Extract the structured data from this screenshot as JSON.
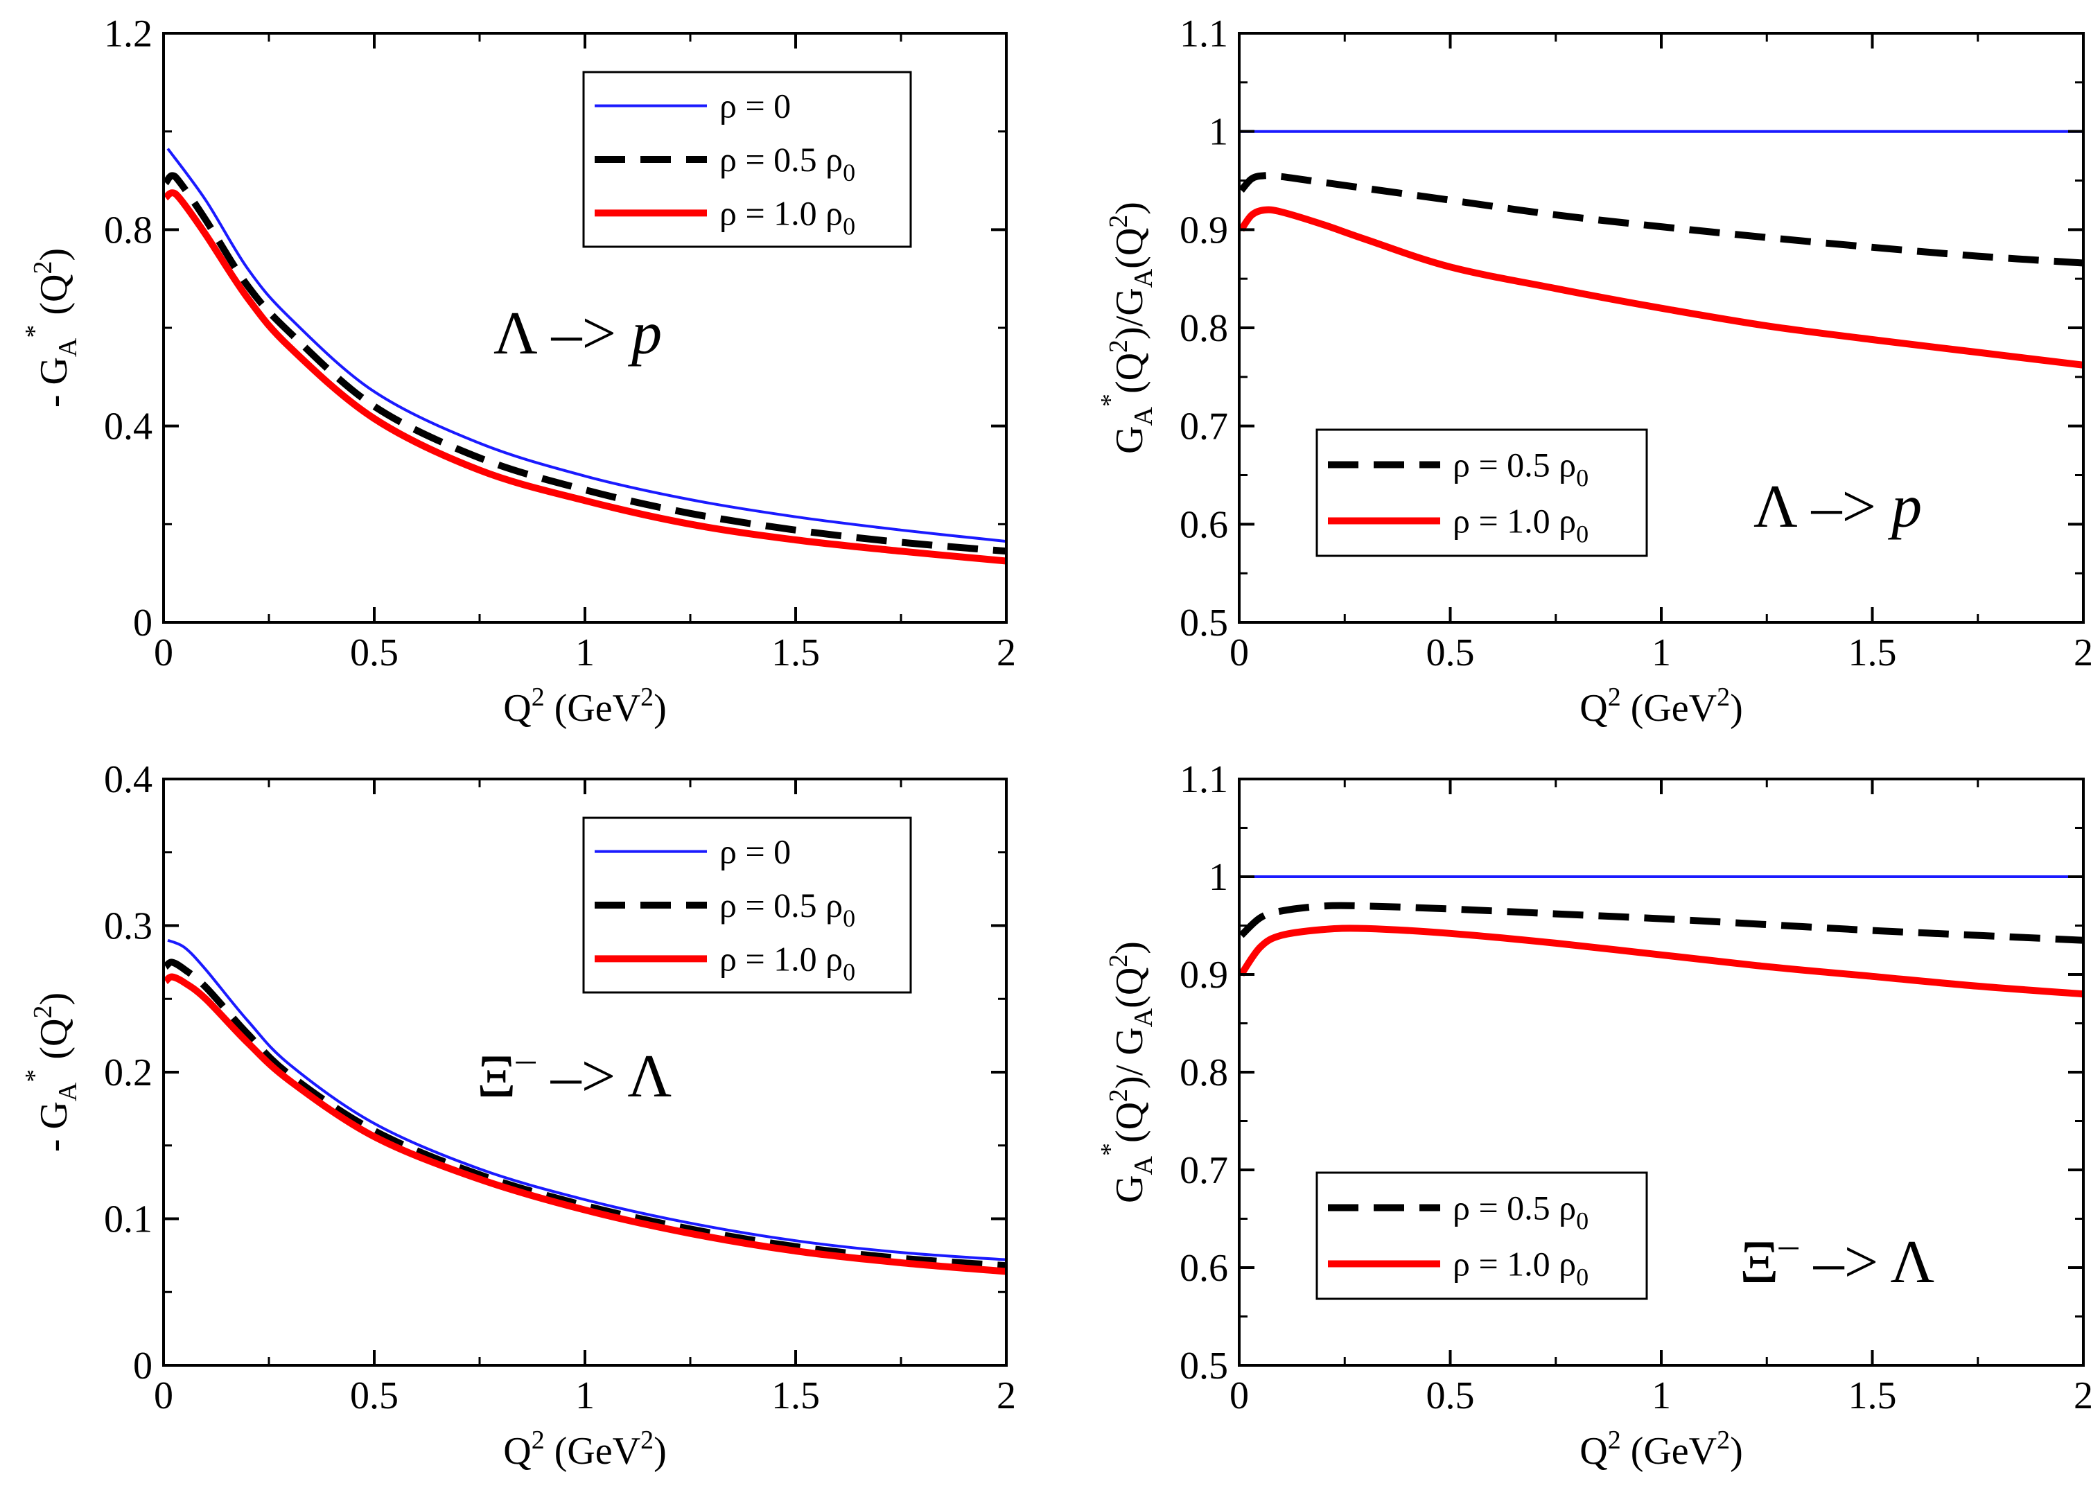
{
  "colors": {
    "blue": "#1a1aff",
    "black": "#000000",
    "red": "#ff0000"
  },
  "chart_data": [
    {
      "type": "line",
      "panel": "top-left",
      "xlim": [
        0,
        2
      ],
      "ylim": [
        0,
        1.2
      ],
      "xticks": [
        "0",
        "0.5",
        "1",
        "1.5",
        "2"
      ],
      "yticks": [
        "0",
        "0.4",
        "0.8",
        "1.2"
      ],
      "xlabel": {
        "main": "Q",
        "sup": "2",
        "rest": " (GeV",
        "sup2": "2",
        "end": ")"
      },
      "ylabel": {
        "pre": "- G",
        "sub": "A",
        "sup": "*",
        "mid": " (Q",
        "sup2": "2",
        "end": ")"
      },
      "annotation": {
        "main": "Λ ",
        "arrow": "–>",
        "italic": " p",
        "sup": ""
      },
      "legend": {
        "position": "top-right",
        "entries": [
          {
            "label": "ρ =  0",
            "sub": ""
          },
          {
            "label": "ρ = 0.5 ρ",
            "sub": "0"
          },
          {
            "label": "ρ = 1.0 ρ",
            "sub": "0"
          }
        ]
      },
      "series": [
        {
          "name": "ρ = 0",
          "color": "blue",
          "style": "solid",
          "width": 4,
          "x": [
            0.01,
            0.1,
            0.2,
            0.3,
            0.5,
            0.75,
            1.0,
            1.25,
            1.5,
            1.75,
            2.0
          ],
          "y": [
            0.965,
            0.86,
            0.72,
            0.62,
            0.47,
            0.365,
            0.298,
            0.25,
            0.215,
            0.188,
            0.165
          ]
        },
        {
          "name": "ρ = 0.5 ρ0",
          "color": "black",
          "style": "dashed",
          "width": 10,
          "x": [
            0.005,
            0.02,
            0.04,
            0.1,
            0.2,
            0.3,
            0.5,
            0.75,
            1.0,
            1.25,
            1.5,
            1.75,
            2.0
          ],
          "y": [
            0.895,
            0.91,
            0.895,
            0.82,
            0.685,
            0.59,
            0.44,
            0.335,
            0.27,
            0.222,
            0.188,
            0.163,
            0.145
          ]
        },
        {
          "name": "ρ = 1.0 ρ0",
          "color": "red",
          "style": "solid",
          "width": 10,
          "x": [
            0.005,
            0.02,
            0.04,
            0.1,
            0.2,
            0.3,
            0.5,
            0.75,
            1.0,
            1.25,
            1.5,
            1.75,
            2.0
          ],
          "y": [
            0.865,
            0.875,
            0.862,
            0.79,
            0.66,
            0.56,
            0.415,
            0.31,
            0.248,
            0.2,
            0.168,
            0.145,
            0.125
          ]
        }
      ]
    },
    {
      "type": "line",
      "panel": "top-right",
      "xlim": [
        0,
        2
      ],
      "ylim": [
        0.5,
        1.1
      ],
      "xticks": [
        "0",
        "0.5",
        "1",
        "1.5",
        "2"
      ],
      "yticks": [
        "0.5",
        "0.6",
        "0.7",
        "0.8",
        "0.9",
        "1",
        "1.1"
      ],
      "xlabel": {
        "main": "Q",
        "sup": "2",
        "rest": " (GeV",
        "sup2": "2",
        "end": ")"
      },
      "ylabel": {
        "pre": "G",
        "sub": "A",
        "sup": "*",
        "mid": "(Q",
        "sup2": "2",
        "end": ")/G",
        "sub2": "A",
        "tail": "(Q",
        "sup3": "2",
        "end2": ")"
      },
      "annotation": {
        "main": "Λ ",
        "arrow": "–>",
        "italic": " p",
        "sup": ""
      },
      "legend": {
        "position": "bottom-left",
        "entries": [
          {
            "label": "ρ = 0.5 ρ",
            "sub": "0"
          },
          {
            "label": "ρ = 1.0 ρ",
            "sub": "0"
          }
        ]
      },
      "series": [
        {
          "name": "ρ = 0",
          "color": "blue",
          "style": "solid",
          "width": 4,
          "x": [
            0,
            2
          ],
          "y": [
            1.0,
            1.0
          ]
        },
        {
          "name": "ρ = 0.5 ρ0",
          "color": "black",
          "style": "dashed",
          "width": 10,
          "x": [
            0.005,
            0.03,
            0.06,
            0.1,
            0.2,
            0.5,
            0.75,
            1.0,
            1.25,
            1.5,
            1.75,
            2.0
          ],
          "y": [
            0.94,
            0.952,
            0.955,
            0.954,
            0.948,
            0.93,
            0.915,
            0.903,
            0.892,
            0.882,
            0.873,
            0.866
          ]
        },
        {
          "name": "ρ = 1.0 ρ0",
          "color": "red",
          "style": "solid",
          "width": 10,
          "x": [
            0.005,
            0.03,
            0.06,
            0.1,
            0.2,
            0.3,
            0.5,
            0.75,
            1.0,
            1.25,
            1.5,
            1.75,
            2.0
          ],
          "y": [
            0.9,
            0.915,
            0.92,
            0.918,
            0.905,
            0.89,
            0.862,
            0.84,
            0.82,
            0.802,
            0.788,
            0.775,
            0.762
          ]
        }
      ]
    },
    {
      "type": "line",
      "panel": "bottom-left",
      "xlim": [
        0,
        2
      ],
      "ylim": [
        0,
        0.4
      ],
      "xticks": [
        "0",
        "0.5",
        "1",
        "1.5",
        "2"
      ],
      "yticks": [
        "0",
        "0.1",
        "0.2",
        "0.3",
        "0.4"
      ],
      "xlabel": {
        "main": "Q",
        "sup": "2",
        "rest": " (GeV",
        "sup2": "2",
        "end": ")"
      },
      "ylabel": {
        "pre": "- G",
        "sub": "A",
        "sup": "*",
        "mid": " (Q",
        "sup2": "2",
        "end": ")"
      },
      "annotation": {
        "main": "Ξ",
        "sup": "–",
        "arrow": " –> ",
        "italic": "",
        "after": "Λ"
      },
      "legend": {
        "position": "top-right",
        "entries": [
          {
            "label": "ρ =  0",
            "sub": ""
          },
          {
            "label": "ρ = 0.5 ρ",
            "sub": "0"
          },
          {
            "label": "ρ = 1.0 ρ",
            "sub": "0"
          }
        ]
      },
      "series": [
        {
          "name": "ρ = 0",
          "color": "blue",
          "style": "solid",
          "width": 4,
          "x": [
            0.01,
            0.05,
            0.1,
            0.2,
            0.3,
            0.5,
            0.75,
            1.0,
            1.25,
            1.5,
            1.75,
            2.0
          ],
          "y": [
            0.29,
            0.285,
            0.27,
            0.235,
            0.205,
            0.165,
            0.134,
            0.113,
            0.097,
            0.085,
            0.077,
            0.072
          ]
        },
        {
          "name": "ρ = 0.5 ρ0",
          "color": "black",
          "style": "dashed",
          "width": 10,
          "x": [
            0.005,
            0.02,
            0.05,
            0.1,
            0.2,
            0.3,
            0.5,
            0.75,
            1.0,
            1.25,
            1.5,
            1.75,
            2.0
          ],
          "y": [
            0.272,
            0.275,
            0.27,
            0.258,
            0.226,
            0.198,
            0.16,
            0.13,
            0.109,
            0.093,
            0.081,
            0.073,
            0.068
          ]
        },
        {
          "name": "ρ = 1.0 ρ0",
          "color": "red",
          "style": "solid",
          "width": 10,
          "x": [
            0.005,
            0.02,
            0.05,
            0.1,
            0.2,
            0.3,
            0.5,
            0.75,
            1.0,
            1.25,
            1.5,
            1.75,
            2.0
          ],
          "y": [
            0.262,
            0.265,
            0.261,
            0.25,
            0.22,
            0.194,
            0.156,
            0.127,
            0.106,
            0.09,
            0.078,
            0.07,
            0.064
          ]
        }
      ]
    },
    {
      "type": "line",
      "panel": "bottom-right",
      "xlim": [
        0,
        2
      ],
      "ylim": [
        0.5,
        1.1
      ],
      "xticks": [
        "0",
        "0.5",
        "1",
        "1.5",
        "2"
      ],
      "yticks": [
        "0.5",
        "0.6",
        "0.7",
        "0.8",
        "0.9",
        "1",
        "1.1"
      ],
      "xlabel": {
        "main": "Q",
        "sup": "2",
        "rest": " (GeV",
        "sup2": "2",
        "end": ")"
      },
      "ylabel": {
        "pre": "G",
        "sub": "A",
        "sup": "*",
        "mid": "(Q",
        "sup2": "2",
        "end": ")/ G",
        "sub2": "A",
        "tail": "(Q",
        "sup3": "2",
        "end2": ")"
      },
      "annotation": {
        "main": "Ξ",
        "sup": "–",
        "arrow": " –> ",
        "italic": "",
        "after": "Λ"
      },
      "legend": {
        "position": "bottom-left",
        "entries": [
          {
            "label": "ρ = 0.5 ρ",
            "sub": "0"
          },
          {
            "label": "ρ = 1.0 ρ",
            "sub": "0"
          }
        ]
      },
      "series": [
        {
          "name": "ρ = 0",
          "color": "blue",
          "style": "solid",
          "width": 4,
          "x": [
            0,
            2
          ],
          "y": [
            1.0,
            1.0
          ]
        },
        {
          "name": "ρ = 0.5 ρ0",
          "color": "black",
          "style": "dashed",
          "width": 10,
          "x": [
            0.005,
            0.05,
            0.1,
            0.2,
            0.3,
            0.5,
            0.75,
            1.0,
            1.25,
            1.5,
            1.75,
            2.0
          ],
          "y": [
            0.94,
            0.958,
            0.965,
            0.97,
            0.97,
            0.967,
            0.962,
            0.957,
            0.951,
            0.945,
            0.94,
            0.935
          ]
        },
        {
          "name": "ρ = 1.0 ρ0",
          "color": "red",
          "style": "solid",
          "width": 10,
          "x": [
            0.005,
            0.05,
            0.1,
            0.2,
            0.3,
            0.5,
            0.75,
            1.0,
            1.25,
            1.5,
            1.75,
            2.0
          ],
          "y": [
            0.9,
            0.928,
            0.94,
            0.946,
            0.947,
            0.942,
            0.932,
            0.92,
            0.908,
            0.898,
            0.888,
            0.88
          ]
        }
      ]
    }
  ]
}
